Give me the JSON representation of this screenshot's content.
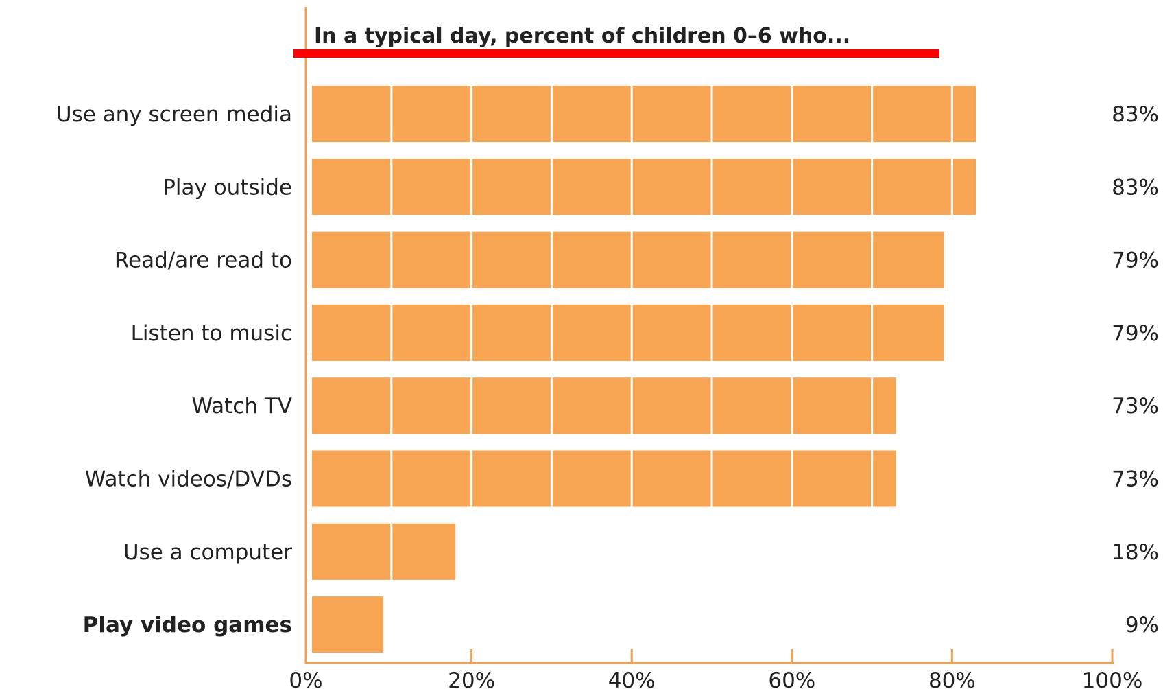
{
  "chart_data": {
    "type": "bar",
    "orientation": "horizontal",
    "title": "In a typical day, percent of children 0–6 who...",
    "categories": [
      "Use any screen media",
      "Play outside",
      "Read/are read to",
      "Listen to music",
      "Watch TV",
      "Watch videos/DVDs",
      "Use a computer",
      "Play video games"
    ],
    "values": [
      83,
      83,
      79,
      79,
      73,
      73,
      18,
      9
    ],
    "value_labels": [
      "83%",
      "83%",
      "79%",
      "79%",
      "73%",
      "73%",
      "18%",
      "9%"
    ],
    "bold_categories": [
      "Play video games"
    ],
    "xlim": [
      0,
      100
    ],
    "xticks": [
      0,
      20,
      40,
      60,
      80,
      100
    ],
    "xtick_labels": [
      "0%",
      "20%",
      "40%",
      "60%",
      "80%",
      "100%"
    ],
    "xlabel": "",
    "ylabel": "",
    "grid": false,
    "legend": "none",
    "colors": {
      "bar": "#F7A552",
      "segment_divider": "#ffffff",
      "axis": "#F0A050",
      "title_underline": "#FF0000",
      "text": "#222222"
    }
  }
}
